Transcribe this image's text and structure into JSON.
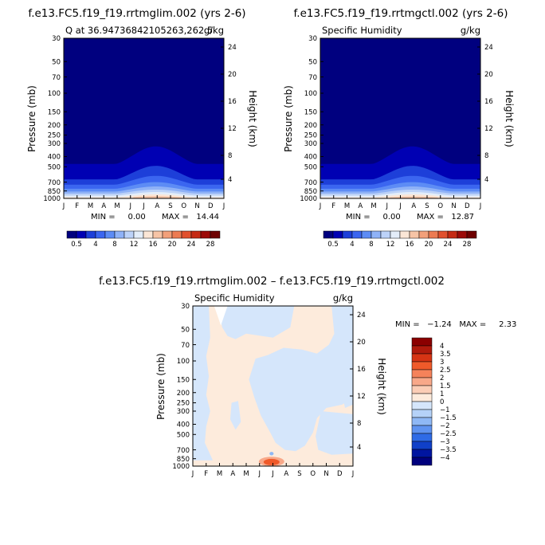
{
  "chart_data": [
    {
      "type": "heatmap",
      "title": "f.e13.FC5.f19_f19.rrtmglim.002 (yrs 2-6)",
      "subtitle_left": "Q at 36.94736842105263,262.5",
      "subtitle_right": "g/kg",
      "ylabel": "Pressure (mb)",
      "ylabel_right": "Height (km)",
      "x": [
        "J",
        "F",
        "M",
        "A",
        "M",
        "J",
        "J",
        "A",
        "S",
        "O",
        "N",
        "D",
        "J"
      ],
      "yticks": [
        "30",
        "50",
        "70",
        "100",
        "150",
        "200",
        "250",
        "300",
        "400",
        "500",
        "700",
        "850",
        "1000"
      ],
      "yticks_right": [
        "24",
        "20",
        "16",
        "12",
        "8",
        "4"
      ],
      "min_text": "MIN =     0.00",
      "max_text": "MAX =   14.44",
      "min": 0.0,
      "max": 14.44,
      "colorbar_labels": [
        "0.5",
        "4",
        "8",
        "12",
        "16",
        "20",
        "24",
        "28"
      ]
    },
    {
      "type": "heatmap",
      "title": "f.e13.FC5.f19_f19.rrtmgctl.002 (yrs 2-6)",
      "subtitle_left": "Specific Humidity",
      "subtitle_right": "g/kg",
      "ylabel": "Pressure (mb)",
      "ylabel_right": "Height (km)",
      "x": [
        "J",
        "F",
        "M",
        "A",
        "M",
        "J",
        "J",
        "A",
        "S",
        "O",
        "N",
        "D",
        "J"
      ],
      "yticks": [
        "30",
        "50",
        "70",
        "100",
        "150",
        "200",
        "250",
        "300",
        "400",
        "500",
        "700",
        "850",
        "1000"
      ],
      "yticks_right": [
        "24",
        "20",
        "16",
        "12",
        "8",
        "4"
      ],
      "min_text": "MIN =     0.00",
      "max_text": "MAX =   12.87",
      "min": 0.0,
      "max": 12.87,
      "colorbar_labels": [
        "0.5",
        "4",
        "8",
        "12",
        "16",
        "20",
        "24",
        "28"
      ]
    },
    {
      "type": "heatmap",
      "title": "f.e13.FC5.f19_f19.rrtmglim.002 – f.e13.FC5.f19_f19.rrtmgctl.002",
      "subtitle_left": "Specific Humidity",
      "subtitle_right": "g/kg",
      "ylabel": "Pressure (mb)",
      "ylabel_right": "Height (km)",
      "x": [
        "J",
        "F",
        "M",
        "A",
        "M",
        "J",
        "J",
        "A",
        "S",
        "O",
        "N",
        "D",
        "J"
      ],
      "yticks": [
        "30",
        "50",
        "70",
        "100",
        "150",
        "200",
        "250",
        "300",
        "400",
        "500",
        "700",
        "850",
        "1000"
      ],
      "yticks_right": [
        "24",
        "20",
        "16",
        "12",
        "8",
        "4"
      ],
      "minmax_text": "MIN =   −1.24   MAX =     2.33",
      "min": -1.24,
      "max": 2.33,
      "colorbar_labels": [
        "4",
        "3.5",
        "3",
        "2.5",
        "2",
        "1.5",
        "1",
        "0",
        "−1",
        "−1.5",
        "−2",
        "−2.5",
        "−3",
        "−3.5",
        "−4"
      ]
    }
  ],
  "colors": {
    "absolute_scale": [
      "#00007f",
      "#0000b3",
      "#1d3fd9",
      "#3b66f0",
      "#5d8cf5",
      "#8fb2f7",
      "#bcd2f8",
      "#e3edf9",
      "#fbe6d6",
      "#f7c4a6",
      "#f2a07a",
      "#ec7b52",
      "#e1512e",
      "#c52a14",
      "#9c0a08",
      "#6e0000"
    ],
    "diff_scale": [
      "#8b0000",
      "#b01a0c",
      "#d63414",
      "#ef5a2a",
      "#f5825a",
      "#f8a889",
      "#fbcdb6",
      "#fdebdc",
      "#d5e6fb",
      "#b5d2f8",
      "#8fb8f5",
      "#5f93f0",
      "#2f6be6",
      "#1040c8",
      "#0015a0",
      "#00007d"
    ],
    "diff_positive_fill": "#fdebdc",
    "diff_negative_fill": "#d5e6fb"
  }
}
